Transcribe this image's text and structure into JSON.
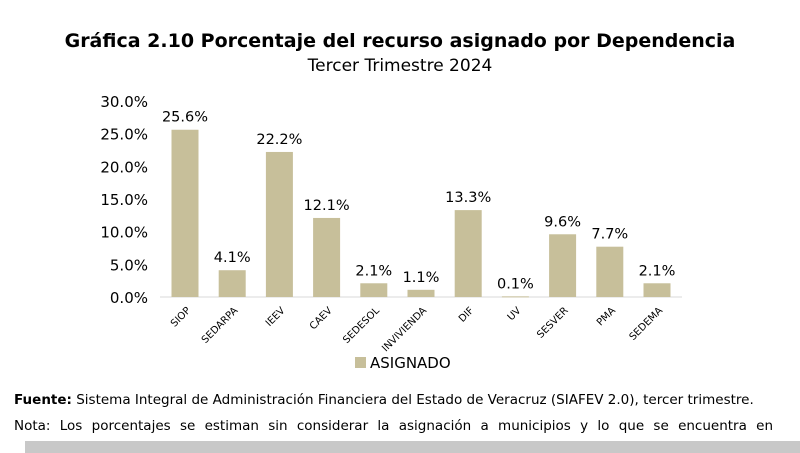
{
  "chart_data": {
    "type": "bar",
    "title": "Gráfica 2.10 Porcentaje del recurso asignado por Dependencia",
    "subtitle": "Tercer Trimestre 2024",
    "categories": [
      "SIOP",
      "SEDARPA",
      "IEEV",
      "CAEV",
      "SEDESOL",
      "INVIVIENDA",
      "DIF",
      "UV",
      "SESVER",
      "PMA",
      "SEDEMA"
    ],
    "series": [
      {
        "name": "ASIGNADO",
        "values": [
          25.6,
          4.1,
          22.2,
          12.1,
          2.1,
          1.1,
          13.3,
          0.1,
          9.6,
          7.7,
          2.1
        ],
        "color": "#c7bf9a"
      }
    ],
    "data_labels": [
      "25.6%",
      "4.1%",
      "22.2%",
      "12.1%",
      "2.1%",
      "1.1%",
      "13.3%",
      "0.1%",
      "9.6%",
      "7.7%",
      "2.1%"
    ],
    "yticks": [
      "0.0%",
      "5.0%",
      "10.0%",
      "15.0%",
      "20.0%",
      "25.0%",
      "30.0%"
    ],
    "ylim": [
      0,
      30
    ],
    "xlabel": "",
    "ylabel": "",
    "grid": false,
    "legend": "bottom"
  },
  "footer": {
    "source_label": "Fuente:",
    "source_text": " Sistema Integral de Administración Financiera del Estado de Veracruz (SIAFEV 2.0), tercer trimestre.",
    "note": "Nota: Los porcentajes se estiman sin considerar la asignación a municipios y lo que se encuentra en"
  }
}
